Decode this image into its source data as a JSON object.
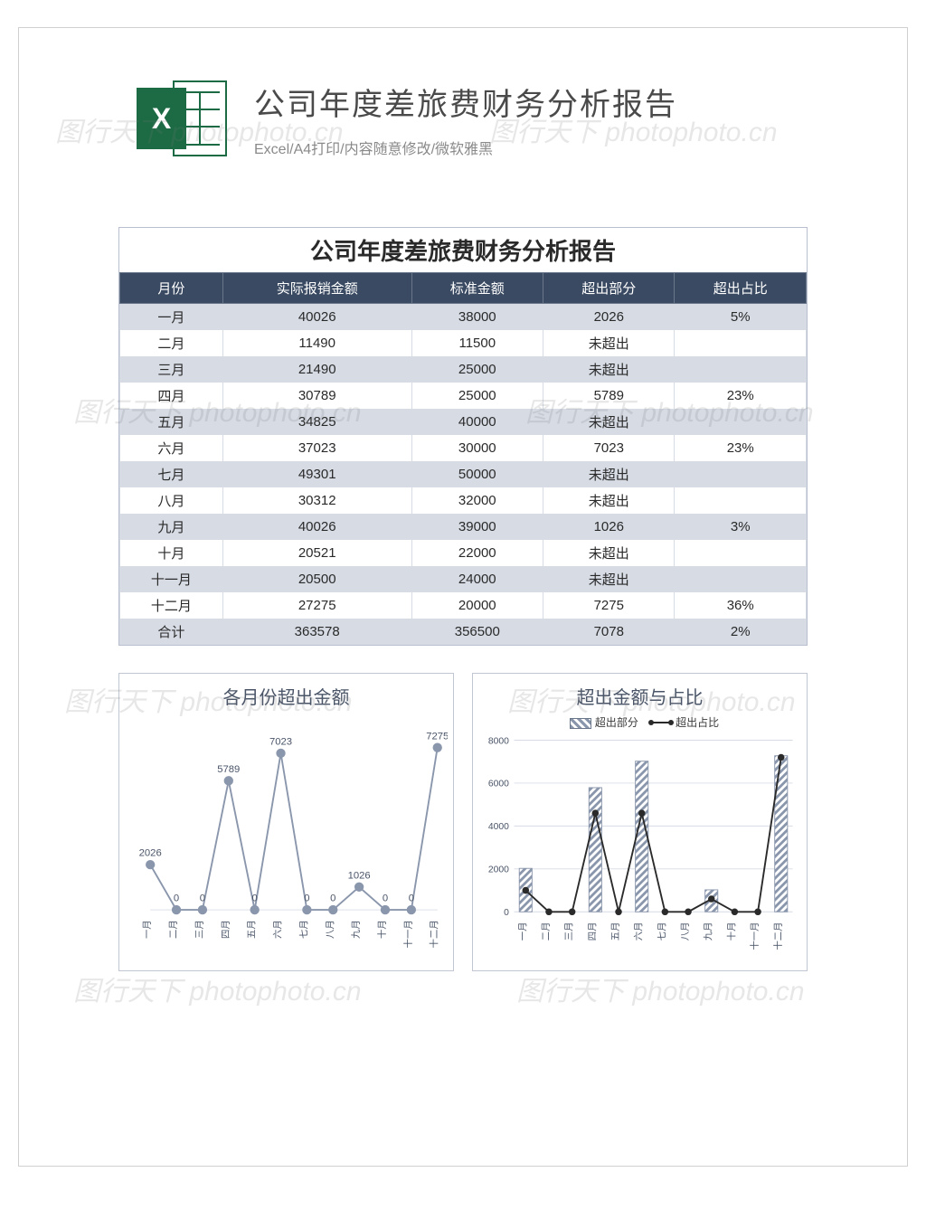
{
  "header": {
    "title": "公司年度差旅费财务分析报告",
    "subtitle": "Excel/A4打印/内容随意修改/微软雅黑",
    "icon_letter": "X",
    "icon_color": "#1c6b44"
  },
  "table": {
    "title": "公司年度差旅费财务分析报告",
    "header_bg": "#3a4a62",
    "header_fg": "#ffffff",
    "row_alt_bg": "#d6dbe4",
    "row_bg": "#ffffff",
    "border_color": "#b8c0d0",
    "columns": [
      "月份",
      "实际报销金额",
      "标准金额",
      "超出部分",
      "超出占比"
    ],
    "rows": [
      [
        "一月",
        "40026",
        "38000",
        "2026",
        "5%"
      ],
      [
        "二月",
        "11490",
        "11500",
        "未超出",
        ""
      ],
      [
        "三月",
        "21490",
        "25000",
        "未超出",
        ""
      ],
      [
        "四月",
        "30789",
        "25000",
        "5789",
        "23%"
      ],
      [
        "五月",
        "34825",
        "40000",
        "未超出",
        ""
      ],
      [
        "六月",
        "37023",
        "30000",
        "7023",
        "23%"
      ],
      [
        "七月",
        "49301",
        "50000",
        "未超出",
        ""
      ],
      [
        "八月",
        "30312",
        "32000",
        "未超出",
        ""
      ],
      [
        "九月",
        "40026",
        "39000",
        "1026",
        "3%"
      ],
      [
        "十月",
        "20521",
        "22000",
        "未超出",
        ""
      ],
      [
        "十一月",
        "20500",
        "24000",
        "未超出",
        ""
      ],
      [
        "十二月",
        "27275",
        "20000",
        "7275",
        "36%"
      ],
      [
        "合计",
        "363578",
        "356500",
        "7078",
        "2%"
      ]
    ]
  },
  "chart1": {
    "type": "line",
    "title": "各月份超出金额",
    "categories": [
      "一月",
      "二月",
      "三月",
      "四月",
      "五月",
      "六月",
      "七月",
      "八月",
      "九月",
      "十月",
      "十一月",
      "十二月"
    ],
    "values": [
      2026,
      0,
      0,
      5789,
      0,
      7023,
      0,
      0,
      1026,
      0,
      0,
      7275
    ],
    "data_labels": [
      "2026",
      "0",
      "0",
      "5789",
      "0",
      "7023",
      "0",
      "0",
      "1026",
      "0",
      "0",
      "7275"
    ],
    "ylim": [
      0,
      8000
    ],
    "line_color": "#8a96ac",
    "marker_fill": "#8a96ac",
    "marker_stroke": "#8a96ac",
    "grid_color": "#d6dbe4",
    "label_color": "#4a5568",
    "title_fontsize": 20,
    "label_fontsize": 12,
    "marker_radius": 5,
    "line_width": 2
  },
  "chart2": {
    "type": "combo",
    "title": "超出金额与占比",
    "categories": [
      "一月",
      "二月",
      "三月",
      "四月",
      "五月",
      "六月",
      "七月",
      "八月",
      "九月",
      "十月",
      "十一月",
      "十二月"
    ],
    "bar_values": [
      2026,
      0,
      0,
      5789,
      0,
      7023,
      0,
      0,
      1026,
      0,
      0,
      7275
    ],
    "line_values": [
      1000,
      0,
      0,
      4600,
      0,
      4600,
      0,
      0,
      600,
      0,
      0,
      7200
    ],
    "ylim": [
      0,
      8000
    ],
    "ytick_step": 2000,
    "yticks": [
      "0",
      "2000",
      "4000",
      "6000",
      "8000"
    ],
    "bar_fill_pattern": "hatch",
    "bar_color": "#8a96ac",
    "line_color": "#2a2a2a",
    "grid_color": "#d6dbe4",
    "label_color": "#4a5568",
    "title_fontsize": 20,
    "label_fontsize": 11,
    "legend": {
      "bar": "超出部分",
      "line": "超出占比"
    },
    "bar_width": 0.55,
    "marker_radius": 4,
    "line_width": 2
  },
  "watermark": "图行天下 photophoto.cn"
}
